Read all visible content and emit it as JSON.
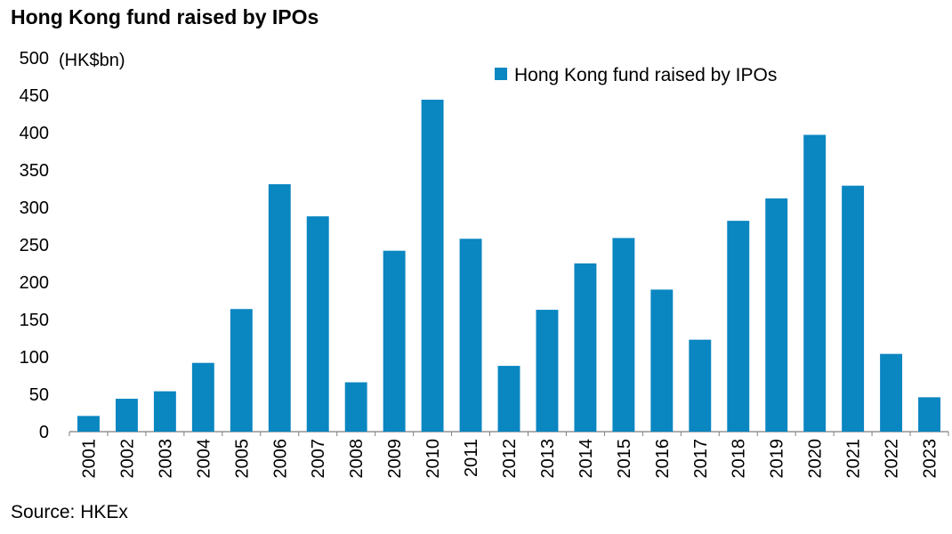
{
  "title": "Hong Kong fund raised by IPOs",
  "source": "Source: HKEx",
  "colors": {
    "bar": "#0a86c1",
    "axis": "#7f7f7f"
  },
  "chart_data": {
    "type": "bar",
    "title": "Hong Kong fund raised by IPOs",
    "unit_label": "(HK$bn)",
    "xlabel": "",
    "ylabel": "",
    "ylim": [
      0,
      500
    ],
    "yticks": [
      0,
      50,
      100,
      150,
      200,
      250,
      300,
      350,
      400,
      450,
      500
    ],
    "grid": false,
    "legend_position": "top-right",
    "categories": [
      "2001",
      "2002",
      "2003",
      "2004",
      "2005",
      "2006",
      "2007",
      "2008",
      "2009",
      "2010",
      "2011",
      "2012",
      "2013",
      "2014",
      "2015",
      "2016",
      "2017",
      "2018",
      "2019",
      "2020",
      "2021",
      "2022",
      "2023"
    ],
    "series": [
      {
        "name": "Hong Kong fund raised by IPOs",
        "values": [
          21,
          44,
          54,
          92,
          164,
          331,
          288,
          66,
          242,
          444,
          258,
          88,
          163,
          225,
          259,
          190,
          123,
          282,
          312,
          397,
          329,
          104,
          46
        ]
      }
    ]
  }
}
